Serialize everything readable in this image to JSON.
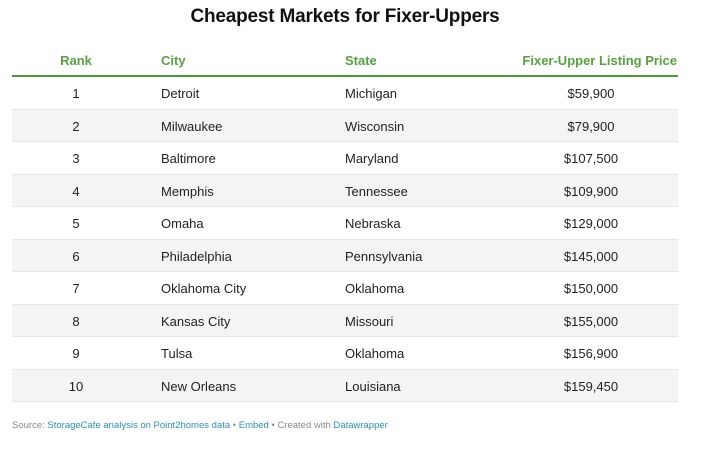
{
  "title": "Cheapest Markets for Fixer-Uppers",
  "columns": {
    "rank": "Rank",
    "city": "City",
    "state": "State",
    "price": "Fixer-Upper Listing Price"
  },
  "rows": [
    {
      "rank": "1",
      "city": "Detroit",
      "state": "Michigan",
      "price": "$59,900"
    },
    {
      "rank": "2",
      "city": "Milwaukee",
      "state": "Wisconsin",
      "price": "$79,900"
    },
    {
      "rank": "3",
      "city": "Baltimore",
      "state": "Maryland",
      "price": "$107,500"
    },
    {
      "rank": "4",
      "city": "Memphis",
      "state": "Tennessee",
      "price": "$109,900"
    },
    {
      "rank": "5",
      "city": "Omaha",
      "state": "Nebraska",
      "price": "$129,000"
    },
    {
      "rank": "6",
      "city": "Philadelphia",
      "state": "Pennsylvania",
      "price": "$145,000"
    },
    {
      "rank": "7",
      "city": "Oklahoma City",
      "state": "Oklahoma",
      "price": "$150,000"
    },
    {
      "rank": "8",
      "city": "Kansas City",
      "state": "Missouri",
      "price": "$155,000"
    },
    {
      "rank": "9",
      "city": "Tulsa",
      "state": "Oklahoma",
      "price": "$156,900"
    },
    {
      "rank": "10",
      "city": "New Orleans",
      "state": "Louisiana",
      "price": "$159,450"
    }
  ],
  "footer": {
    "source_prefix": "Source: ",
    "source_link": "StorageCafe analysis on Point2homes data",
    "sep1": " • ",
    "embed_link": "Embed",
    "created_prefix": " • Created with ",
    "datawrapper_link": "Datawrapper"
  },
  "colors": {
    "header_text": "#56a240",
    "header_rule": "#4e9a3a",
    "link": "#2a8fb5",
    "alt_row": "#f4f4f4"
  }
}
